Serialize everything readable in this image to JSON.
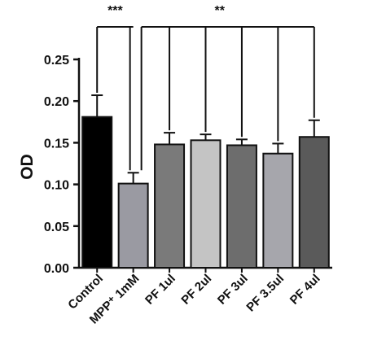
{
  "chart_data": {
    "type": "bar",
    "categories": [
      "Control",
      "MPP⁺ 1mM",
      "PF 1ul",
      "PF 2ul",
      "PF 3ul",
      "PF 3.5ul",
      "PF 4ul"
    ],
    "values": [
      0.181,
      0.101,
      0.148,
      0.153,
      0.147,
      0.137,
      0.157
    ],
    "errors": [
      0.026,
      0.013,
      0.014,
      0.007,
      0.007,
      0.012,
      0.02
    ],
    "bar_colors": [
      "#000000",
      "#9a9aa2",
      "#7a7a7a",
      "#c4c4c4",
      "#6d6d6d",
      "#a6a6ac",
      "#5a5a5a"
    ],
    "ylabel": "OD",
    "ylim": [
      0,
      0.25
    ],
    "yticks": [
      "0.00",
      "0.05",
      "0.10",
      "0.15",
      "0.20",
      "0.25"
    ],
    "grid": false,
    "significance": [
      {
        "label": "***",
        "from": 0,
        "to": [
          1
        ]
      },
      {
        "label": "**",
        "from": 1,
        "to": [
          2,
          3,
          4,
          5,
          6
        ]
      }
    ]
  }
}
